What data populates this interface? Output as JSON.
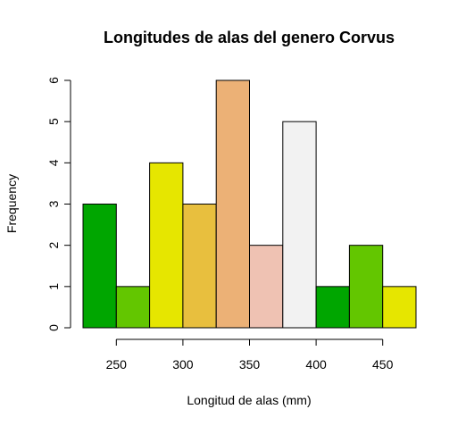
{
  "chart_data": {
    "type": "bar",
    "subtype": "histogram",
    "title": "Longitudes de alas del genero Corvus",
    "xlabel": "Longitud de alas (mm)",
    "ylabel": "Frequency",
    "bin_edges": [
      225,
      250,
      275,
      300,
      325,
      350,
      375,
      400,
      425,
      450,
      475
    ],
    "values": [
      3,
      1,
      4,
      3,
      6,
      2,
      5,
      1,
      2,
      1
    ],
    "colors": [
      "#00A600",
      "#63C600",
      "#E6E600",
      "#E8BF3E",
      "#ECB176",
      "#EFC2B3",
      "#F2F2F2",
      "#00A600",
      "#63C600",
      "#E6E600"
    ],
    "xlim": [
      225,
      475
    ],
    "ylim": [
      0,
      6
    ],
    "x_ticks": [
      250,
      300,
      350,
      400,
      450
    ],
    "y_ticks": [
      0,
      1,
      2,
      3,
      4,
      5,
      6
    ],
    "grid": false,
    "legend": "none"
  }
}
